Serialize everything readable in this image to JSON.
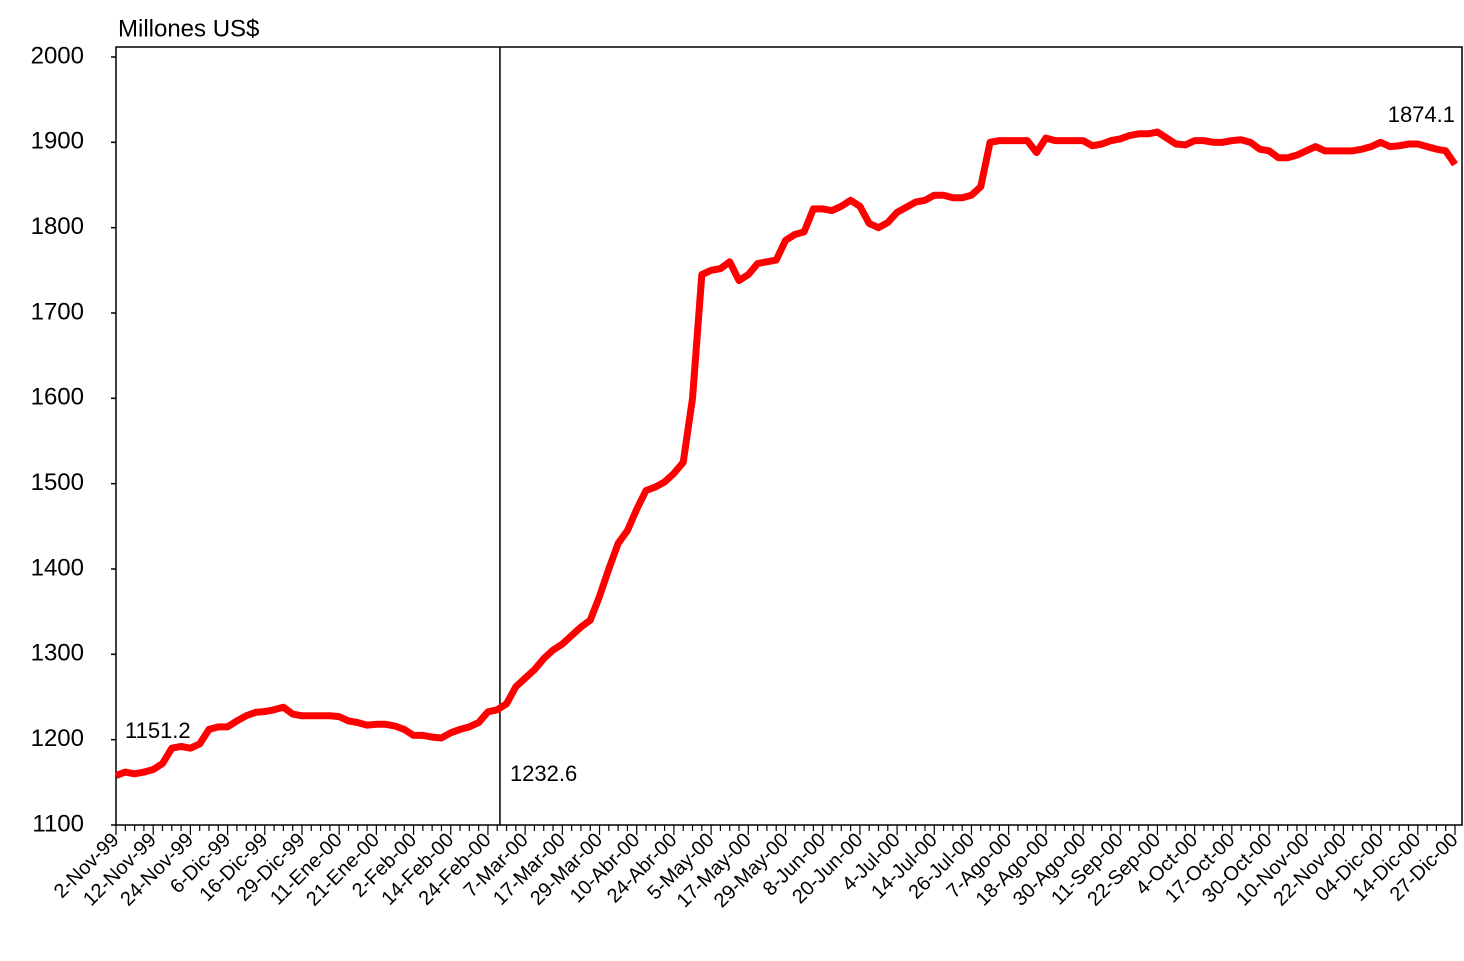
{
  "chart_data": {
    "type": "line",
    "y_label": "Millones US$",
    "ylim": [
      1100,
      2000
    ],
    "yticks": [
      1100,
      1200,
      1300,
      1400,
      1500,
      1600,
      1700,
      1800,
      1900,
      2000
    ],
    "annotations": [
      "1151.2",
      "1232.6",
      "1874.1"
    ],
    "categories": [
      "2-Nov-99",
      null,
      null,
      null,
      "12-Nov-99",
      null,
      null,
      null,
      "24-Nov-99",
      null,
      null,
      null,
      "6-Dic-99",
      null,
      null,
      null,
      "16-Dic-99",
      null,
      null,
      null,
      "29-Dic-99",
      null,
      null,
      null,
      "11-Ene-00",
      null,
      null,
      null,
      "21-Ene-00",
      null,
      null,
      null,
      "2-Feb-00",
      null,
      null,
      null,
      "14-Feb-00",
      null,
      null,
      null,
      "24-Feb-00",
      null,
      null,
      null,
      "7-Mar-00",
      null,
      null,
      null,
      "17-Mar-00",
      null,
      null,
      null,
      "29-Mar-00",
      null,
      null,
      null,
      "10-Abr-00",
      null,
      null,
      null,
      "24-Abr-00",
      null,
      null,
      null,
      "5-May-00",
      null,
      null,
      null,
      "17-May-00",
      null,
      null,
      null,
      "29-May-00",
      null,
      null,
      null,
      "8-Jun-00",
      null,
      null,
      null,
      "20-Jun-00",
      null,
      null,
      null,
      "4-Jul-00",
      null,
      null,
      null,
      "14-Jul-00",
      null,
      null,
      null,
      "26-Jul-00",
      null,
      null,
      null,
      "7-Ago-00",
      null,
      null,
      null,
      "18-Ago-00",
      null,
      null,
      null,
      "30-Ago-00",
      null,
      null,
      null,
      "11-Sep-00",
      null,
      null,
      null,
      "22-Sep-00",
      null,
      null,
      null,
      "4-Oct-00",
      null,
      null,
      null,
      "17-Oct-00",
      null,
      null,
      null,
      "30-Oct-00",
      null,
      null,
      null,
      "10-Nov-00",
      null,
      null,
      null,
      "22-Nov-00",
      null,
      null,
      null,
      "04-Dic-00",
      null,
      null,
      null,
      "14-Dic-00",
      null,
      null,
      null,
      "27-Dic-00"
    ],
    "series": [
      {
        "color": "#ff0000",
        "values": [
          1158,
          1162,
          1160,
          1162,
          1165,
          1172,
          1190,
          1192,
          1190,
          1195,
          1212,
          1215,
          1215,
          1222,
          1228,
          1232,
          1233,
          1235,
          1238,
          1230,
          1228,
          1228,
          1228,
          1228,
          1227,
          1222,
          1220,
          1217,
          1218,
          1218,
          1216,
          1212,
          1205,
          1205,
          1203,
          1202,
          1208,
          1212,
          1215,
          1220,
          1232.6,
          1235,
          1242,
          1262,
          1272,
          1282,
          1295,
          1305,
          1312,
          1322,
          1332,
          1340,
          1368,
          1400,
          1430,
          1445,
          1470,
          1492,
          1496,
          1502,
          1512,
          1525,
          1600,
          1745,
          1750,
          1752,
          1760,
          1738,
          1745,
          1758,
          1760,
          1762,
          1785,
          1792,
          1795,
          1822,
          1822,
          1820,
          1825,
          1832,
          1825,
          1805,
          1800,
          1806,
          1818,
          1824,
          1830,
          1832,
          1838,
          1838,
          1835,
          1835,
          1838,
          1848,
          1900,
          1902,
          1902,
          1902,
          1902,
          1888,
          1905,
          1902,
          1902,
          1902,
          1902,
          1896,
          1898,
          1902,
          1904,
          1908,
          1910,
          1910,
          1912,
          1905,
          1898,
          1897,
          1902,
          1902,
          1900,
          1900,
          1902,
          1903,
          1900,
          1892,
          1890,
          1882,
          1882,
          1885,
          1890,
          1895,
          1890,
          1890,
          1890,
          1890,
          1892,
          1895,
          1900,
          1895,
          1896,
          1898,
          1898,
          1895,
          1892,
          1890,
          1874.1
        ]
      }
    ]
  }
}
